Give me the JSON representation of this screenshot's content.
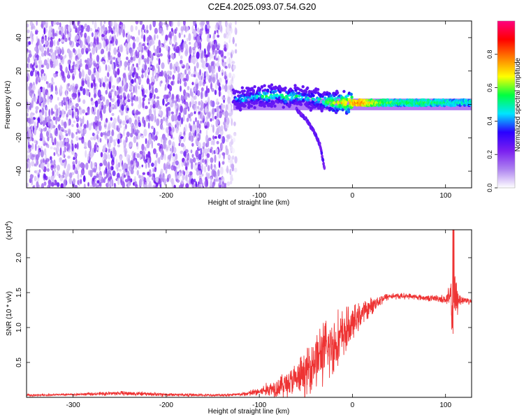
{
  "title": "C2E4.2025.093.07.54.G20",
  "chart_data": [
    {
      "type": "heatmap",
      "xlabel": "Height of straight line (km)",
      "ylabel": "Frequency (Hz)",
      "xlim": [
        -350,
        128
      ],
      "ylim": [
        -50,
        50
      ],
      "xticks": [
        -300,
        -200,
        -100,
        0,
        100
      ],
      "yticks": [
        -40,
        -20,
        0,
        20,
        40
      ],
      "colorbar": {
        "label": "Normalized spectral amplitude",
        "range": [
          0.0,
          1.0
        ],
        "ticks": [
          "0.0",
          "0.2",
          "0.4",
          "0.6",
          "0.8"
        ],
        "colors": [
          "#ffffff",
          "#ae83f0",
          "#7a1ff0",
          "#2a00ff",
          "#00e5ff",
          "#00ff40",
          "#ffff00",
          "#ff8000",
          "#ff0000",
          "#ff0080"
        ]
      },
      "noise_region_x": [
        -350,
        -125
      ],
      "ridge": {
        "x": [
          -128,
          -120,
          -110,
          -100,
          -90,
          -80,
          -70,
          -60,
          -50,
          -40,
          -30,
          -20,
          -10,
          0,
          10,
          30,
          50,
          70,
          90,
          110,
          128
        ],
        "y": [
          4,
          3,
          4,
          5,
          5,
          6,
          4,
          5,
          4,
          3,
          2,
          1,
          1,
          1,
          1,
          1,
          1,
          1,
          1,
          1,
          1
        ],
        "amplitude": [
          0.35,
          0.45,
          0.45,
          0.5,
          0.55,
          0.5,
          0.55,
          0.5,
          0.45,
          0.5,
          0.55,
          0.65,
          0.7,
          0.75,
          0.8,
          0.6,
          0.55,
          0.55,
          0.55,
          0.5,
          0.5
        ]
      },
      "branch": {
        "x": [
          -60,
          -55,
          -50,
          -45,
          -40,
          -35,
          -30
        ],
        "y": [
          -3,
          -6,
          -9,
          -13,
          -18,
          -24,
          -38
        ]
      }
    },
    {
      "type": "line",
      "xlabel": "Height of straight line (km)",
      "ylabel": "SNR (10 * v/v)",
      "y_multiplier": "(x10",
      "y_multiplier_exp": "4",
      "y_multiplier_close": ")",
      "xlim": [
        -350,
        128
      ],
      "ylim": [
        0,
        2.4
      ],
      "xticks": [
        -300,
        -200,
        -100,
        0,
        100
      ],
      "yticks": [
        "0.5",
        "1.0",
        "1.5",
        "2.0"
      ],
      "color": "#ee3333",
      "envelope": {
        "x": [
          -350,
          -300,
          -250,
          -200,
          -150,
          -120,
          -100,
          -80,
          -60,
          -50,
          -40,
          -30,
          -20,
          -10,
          0,
          10,
          20,
          30,
          40,
          60,
          80,
          90,
          100,
          105,
          108,
          110,
          115,
          128
        ],
        "mean": [
          0.03,
          0.04,
          0.06,
          0.04,
          0.03,
          0.04,
          0.08,
          0.15,
          0.25,
          0.35,
          0.55,
          0.65,
          0.75,
          0.9,
          1.05,
          1.2,
          1.3,
          1.4,
          1.45,
          1.45,
          1.42,
          1.42,
          1.4,
          1.42,
          1.3,
          1.42,
          1.4,
          1.38
        ],
        "spread": [
          0.02,
          0.02,
          0.04,
          0.03,
          0.02,
          0.03,
          0.08,
          0.18,
          0.3,
          0.4,
          0.5,
          0.55,
          0.55,
          0.45,
          0.3,
          0.2,
          0.15,
          0.1,
          0.06,
          0.05,
          0.05,
          0.06,
          0.08,
          0.25,
          0.8,
          0.5,
          0.1,
          0.05
        ]
      }
    }
  ]
}
